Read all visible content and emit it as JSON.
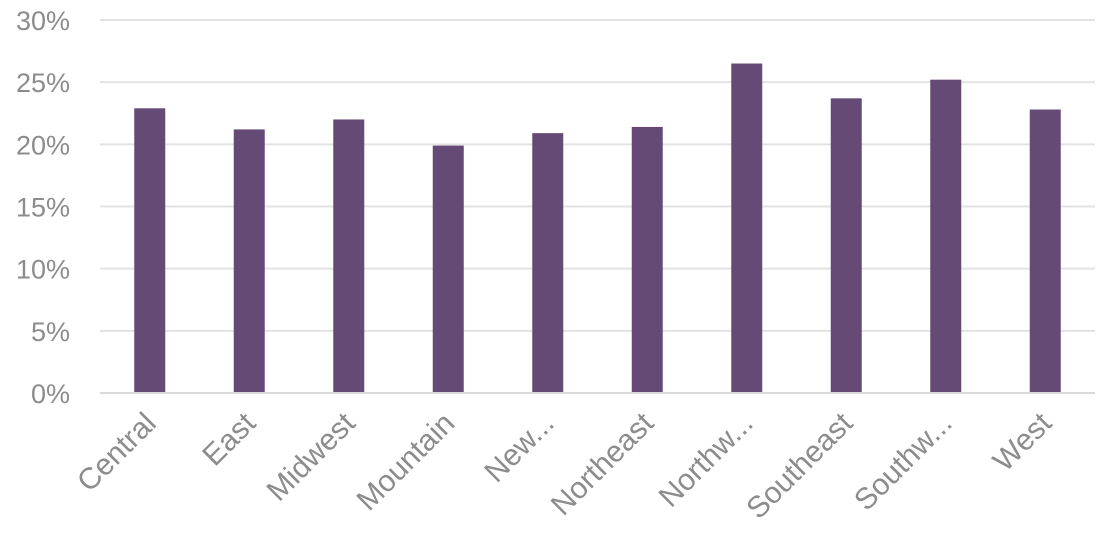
{
  "chart_data": {
    "type": "bar",
    "categories": [
      "Central",
      "East",
      "Midwest",
      "Mountain",
      "New...",
      "Northeast",
      "Northw...",
      "Southeast",
      "Southw...",
      "West"
    ],
    "values": [
      22.9,
      21.2,
      22.0,
      19.9,
      20.9,
      21.4,
      26.5,
      23.7,
      25.2,
      22.8
    ],
    "ylim": [
      0,
      30
    ],
    "yticks": [
      0,
      5,
      10,
      15,
      20,
      25,
      30
    ],
    "ytick_format": "{v}%",
    "grid": true,
    "legend": "none",
    "bar_color": "#654a75",
    "title": "",
    "xlabel": "",
    "ylabel": ""
  }
}
